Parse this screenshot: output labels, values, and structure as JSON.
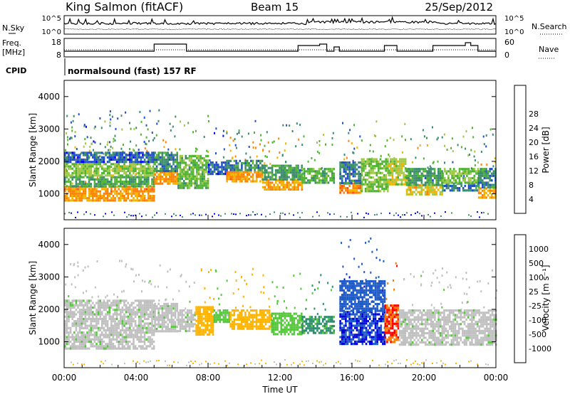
{
  "header": {
    "station": "King Salmon (fitACF)",
    "beam": "Beam 15",
    "date": "25/Sep/2012"
  },
  "noise_panel": {
    "left_label": "N.Sky",
    "right_label": "N.Search",
    "left_ticks": [
      "10^5",
      "10^0"
    ],
    "right_ticks": [
      "10^5",
      "10^0"
    ]
  },
  "freq_panel": {
    "left_label_1": "Freq.",
    "left_label_2": "[MHz]",
    "right_label": "Nave",
    "left_ticks": [
      "18",
      "8"
    ],
    "right_ticks": [
      "60",
      "0"
    ]
  },
  "cpid": {
    "label": "CPID",
    "value": "normalsound (fast) 157 RF"
  },
  "time_axis": {
    "label": "Time UT",
    "ticks": [
      "00:00",
      "04:00",
      "08:00",
      "12:00",
      "16:00",
      "20:00",
      "00:00"
    ]
  },
  "colors": {
    "power": [
      "#0000ff",
      "#2050c8",
      "#3c8c6e",
      "#50b432",
      "#a0c846",
      "#f0b400",
      "#ff8200",
      "#ff5014",
      "#ff0000"
    ],
    "velocity": [
      "#0000dc",
      "#1e5ac8",
      "#2d8c6e",
      "#55c83c",
      "#c0c0c0",
      "#c0c0c0",
      "#ffb400",
      "#ff7800",
      "#ff0000"
    ]
  },
  "chart_data": [
    {
      "type": "heatmap",
      "name": "power",
      "ylabel": "Slant Range [km]",
      "xlabel": "",
      "ylim": [
        200,
        4500
      ],
      "xlim": [
        0,
        24
      ],
      "yticks": [
        1000,
        2000,
        3000,
        4000
      ],
      "colorbar": {
        "label": "Power [dB]",
        "ticks": [
          "4",
          "8",
          "12",
          "16",
          "20",
          "24",
          "28"
        ],
        "range": [
          0,
          32
        ]
      },
      "regions": [
        {
          "t0": 0.0,
          "t1": 5.0,
          "r0": 800,
          "r1": 1250,
          "value": 22
        },
        {
          "t0": 0.0,
          "t1": 5.0,
          "r0": 1250,
          "r1": 1550,
          "value": 11
        },
        {
          "t0": 0.0,
          "t1": 5.0,
          "r0": 1550,
          "r1": 1950,
          "value": 15
        },
        {
          "t0": 0.0,
          "t1": 5.0,
          "r0": 1950,
          "r1": 2300,
          "value": 6
        },
        {
          "t0": 5.0,
          "t1": 6.3,
          "r0": 1300,
          "r1": 1700,
          "value": 22
        },
        {
          "t0": 5.0,
          "t1": 6.3,
          "r0": 1700,
          "r1": 2300,
          "value": 9
        },
        {
          "t0": 6.3,
          "t1": 8.0,
          "r0": 1200,
          "r1": 2200,
          "value": 13
        },
        {
          "t0": 8.0,
          "t1": 9.0,
          "r0": 1600,
          "r1": 2000,
          "value": 6
        },
        {
          "t0": 9.0,
          "t1": 11.0,
          "r0": 1350,
          "r1": 1700,
          "value": 22
        },
        {
          "t0": 9.0,
          "t1": 11.0,
          "r0": 1700,
          "r1": 2050,
          "value": 9
        },
        {
          "t0": 11.0,
          "t1": 13.2,
          "r0": 1150,
          "r1": 1450,
          "value": 21
        },
        {
          "t0": 11.0,
          "t1": 13.2,
          "r0": 1450,
          "r1": 1900,
          "value": 10
        },
        {
          "t0": 13.2,
          "t1": 15.0,
          "r0": 1350,
          "r1": 1800,
          "value": 12
        },
        {
          "t0": 15.3,
          "t1": 16.5,
          "r0": 1000,
          "r1": 1350,
          "value": 23
        },
        {
          "t0": 15.3,
          "t1": 16.5,
          "r0": 1350,
          "r1": 2000,
          "value": 8
        },
        {
          "t0": 16.5,
          "t1": 18.0,
          "r0": 1100,
          "r1": 2100,
          "value": 14
        },
        {
          "t0": 18.0,
          "t1": 19.0,
          "r0": 1300,
          "r1": 2100,
          "value": 16
        },
        {
          "t0": 19.0,
          "t1": 21.0,
          "r0": 950,
          "r1": 1300,
          "value": 19
        },
        {
          "t0": 19.0,
          "t1": 21.0,
          "r0": 1300,
          "r1": 1800,
          "value": 10
        },
        {
          "t0": 21.0,
          "t1": 23.0,
          "r0": 1100,
          "r1": 1350,
          "value": 8
        },
        {
          "t0": 21.0,
          "t1": 23.0,
          "r0": 1350,
          "r1": 1800,
          "value": 14
        },
        {
          "t0": 23.0,
          "t1": 24.0,
          "r0": 900,
          "r1": 1200,
          "value": 21
        },
        {
          "t0": 23.0,
          "t1": 24.0,
          "r0": 1200,
          "r1": 1800,
          "value": 9
        }
      ]
    },
    {
      "type": "heatmap",
      "name": "velocity",
      "ylabel": "Slant Range [km]",
      "xlabel": "Time UT",
      "ylim": [
        200,
        4500
      ],
      "xlim": [
        0,
        24
      ],
      "yticks": [
        1000,
        2000,
        3000,
        4000
      ],
      "colorbar": {
        "label": "Velocity [m s⁻¹]",
        "ticks": [
          "1000",
          "500",
          "100",
          "25",
          "-25",
          "-100",
          "-500",
          "-1000"
        ]
      },
      "regions": [
        {
          "t0": 0.0,
          "t1": 5.0,
          "r0": 800,
          "r1": 2300,
          "value": 0
        },
        {
          "t0": 5.0,
          "t1": 6.3,
          "r0": 1300,
          "r1": 2200,
          "value": 0
        },
        {
          "t0": 6.3,
          "t1": 7.3,
          "r0": 1300,
          "r1": 2000,
          "value": 0
        },
        {
          "t0": 7.3,
          "t1": 8.3,
          "r0": 1200,
          "r1": 2100,
          "value": -300
        },
        {
          "t0": 8.3,
          "t1": 9.2,
          "r0": 1600,
          "r1": 2000,
          "value": 50
        },
        {
          "t0": 9.2,
          "t1": 11.5,
          "r0": 1400,
          "r1": 2000,
          "value": -150
        },
        {
          "t0": 11.5,
          "t1": 13.2,
          "r0": 1200,
          "r1": 1900,
          "value": 60
        },
        {
          "t0": 13.2,
          "t1": 15.0,
          "r0": 1300,
          "r1": 1800,
          "value": 120
        },
        {
          "t0": 15.3,
          "t1": 17.8,
          "r0": 900,
          "r1": 1950,
          "value": 1000
        },
        {
          "t0": 15.3,
          "t1": 17.8,
          "r0": 1950,
          "r1": 2900,
          "value": 700
        },
        {
          "t0": 17.8,
          "t1": 18.6,
          "r0": 1000,
          "r1": 2150,
          "value": -1000
        },
        {
          "t0": 18.6,
          "t1": 24.0,
          "r0": 900,
          "r1": 2000,
          "value": 0
        }
      ]
    }
  ]
}
